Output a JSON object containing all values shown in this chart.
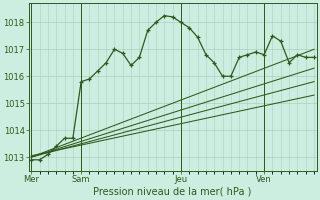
{
  "bg_color": "#cceee0",
  "grid_color": "#aacfbf",
  "line_color": "#2d5a1b",
  "title": "Pression niveau de la mer( hPa )",
  "ylim": [
    1012.5,
    1018.7
  ],
  "yticks": [
    1013,
    1014,
    1015,
    1016,
    1017,
    1018
  ],
  "day_labels": [
    "Mer",
    "Sam",
    "Jeu",
    "Ven"
  ],
  "day_positions": [
    0,
    6,
    18,
    28
  ],
  "vline_positions": [
    0,
    6,
    18,
    28
  ],
  "series1_x": [
    0,
    1,
    2,
    3,
    4,
    5,
    6,
    7,
    8,
    9,
    10,
    11,
    12,
    13,
    14,
    15,
    16,
    17,
    18,
    19,
    20,
    21,
    22,
    23,
    24,
    25,
    26,
    27,
    28,
    29,
    30,
    31,
    32,
    33,
    34
  ],
  "series1_y": [
    1012.9,
    1012.9,
    1013.1,
    1013.4,
    1013.7,
    1013.7,
    1015.8,
    1015.9,
    1016.2,
    1016.5,
    1017.0,
    1016.85,
    1016.4,
    1016.7,
    1017.7,
    1018.0,
    1018.25,
    1018.2,
    1018.0,
    1017.8,
    1017.45,
    1016.8,
    1016.5,
    1016.0,
    1016.0,
    1016.7,
    1016.8,
    1016.9,
    1016.8,
    1017.5,
    1017.3,
    1016.5,
    1016.8,
    1016.7,
    1016.7
  ],
  "straight_lines": [
    {
      "x0": 0,
      "y0": 1013.0,
      "x1": 34,
      "y1": 1017.0
    },
    {
      "x0": 0,
      "y0": 1013.0,
      "x1": 34,
      "y1": 1016.3
    },
    {
      "x0": 0,
      "y0": 1013.0,
      "x1": 34,
      "y1": 1015.8
    },
    {
      "x0": 0,
      "y0": 1013.05,
      "x1": 34,
      "y1": 1015.3
    }
  ],
  "xmin": 0,
  "xmax": 34,
  "ylabel_fontsize": 6,
  "xlabel_fontsize": 7,
  "tick_labelsize": 6
}
